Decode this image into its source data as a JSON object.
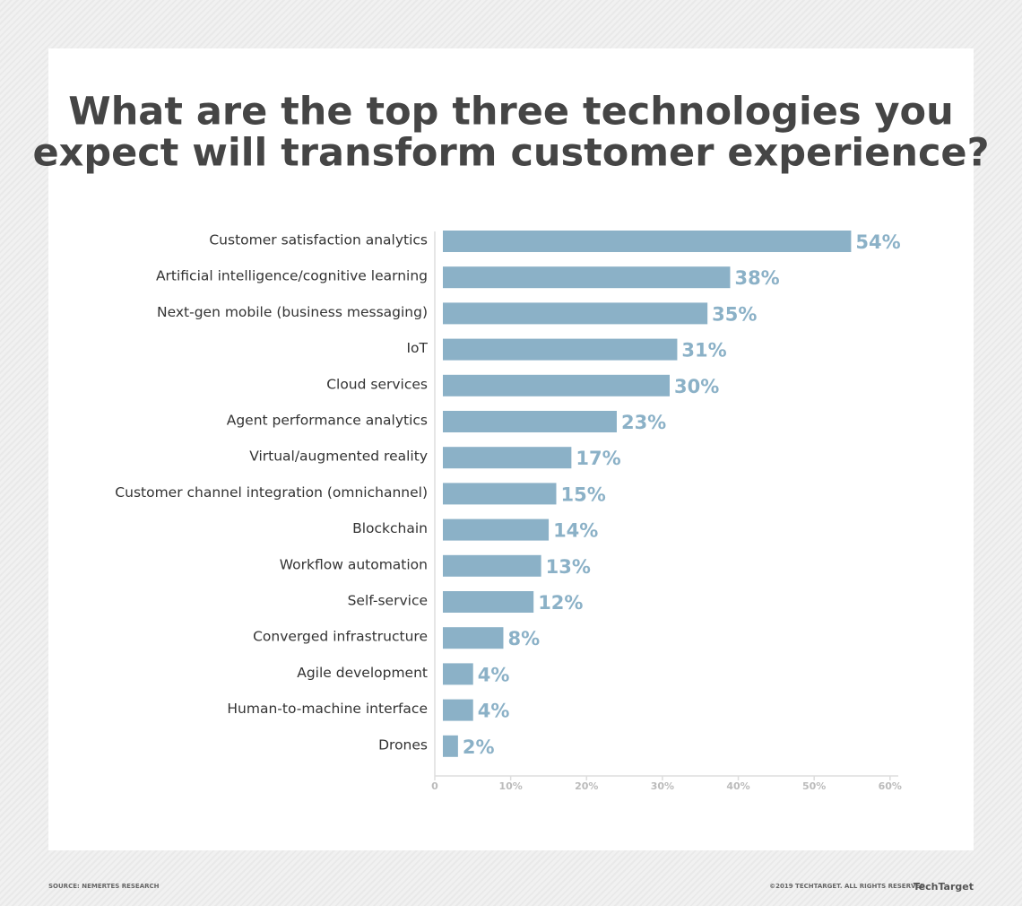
{
  "chart_data": {
    "type": "bar",
    "orientation": "horizontal",
    "title": "What are the top three technologies you expect will transform customer experience?",
    "categories": [
      "Customer satisfaction analytics",
      "Artificial intelligence/cognitive learning",
      "Next-gen mobile (business messaging)",
      "IoT",
      "Cloud services",
      "Agent performance analytics",
      "Virtual/augmented reality",
      "Customer channel integration (omnichannel)",
      "Blockchain",
      "Workflow automation",
      "Self-service",
      "Converged infrastructure",
      "Agile development",
      "Human-to-machine interface",
      "Drones"
    ],
    "values": [
      54,
      38,
      35,
      31,
      30,
      23,
      17,
      15,
      14,
      13,
      12,
      8,
      4,
      4,
      2
    ],
    "value_labels": [
      "54%",
      "38%",
      "35%",
      "31%",
      "30%",
      "23%",
      "17%",
      "15%",
      "14%",
      "13%",
      "12%",
      "8%",
      "4%",
      "4%",
      "2%"
    ],
    "color": "#8bb1c7",
    "xlim": [
      0,
      60
    ],
    "xticks": [
      0,
      {
        "value": 10,
        "label": "10%"
      },
      {
        "value": 20,
        "label": "20%"
      },
      {
        "value": 30,
        "label": "30%"
      },
      {
        "value": 40,
        "label": "40%"
      },
      {
        "value": 50,
        "label": "50%"
      },
      {
        "value": 60,
        "label": "60%"
      }
    ],
    "source": "SOURCE: NEMERTES RESEARCH",
    "copyright": "©2019 TECHTARGET. ALL RIGHTS RESERVED",
    "logo": "TechTarget"
  }
}
